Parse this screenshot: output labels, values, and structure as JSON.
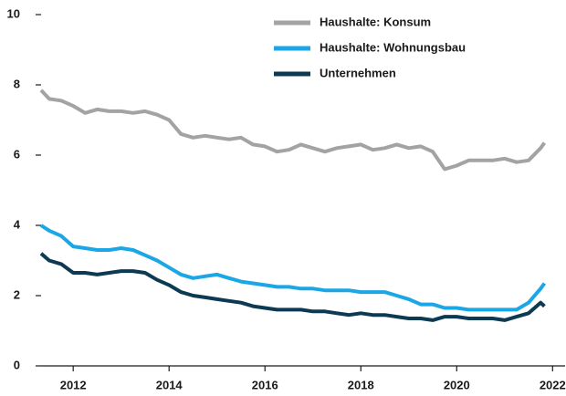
{
  "chart_data": {
    "type": "line",
    "x": [
      2011.33,
      2011.5,
      2011.75,
      2012,
      2012.25,
      2012.5,
      2012.75,
      2013,
      2013.25,
      2013.5,
      2013.75,
      2014,
      2014.25,
      2014.5,
      2014.75,
      2015,
      2015.25,
      2015.5,
      2015.75,
      2016,
      2016.25,
      2016.5,
      2016.75,
      2017,
      2017.25,
      2017.5,
      2017.75,
      2018,
      2018.25,
      2018.5,
      2018.75,
      2019,
      2019.25,
      2019.5,
      2019.75,
      2020,
      2020.25,
      2020.5,
      2020.75,
      2021,
      2021.25,
      2021.5,
      2021.75,
      2021.83
    ],
    "series": [
      {
        "name": "Haushalte: Konsum",
        "color": "#a3a3a3",
        "values": [
          7.85,
          7.6,
          7.55,
          7.4,
          7.2,
          7.3,
          7.25,
          7.25,
          7.2,
          7.25,
          7.15,
          7.0,
          6.6,
          6.5,
          6.55,
          6.5,
          6.45,
          6.5,
          6.3,
          6.25,
          6.1,
          6.15,
          6.3,
          6.2,
          6.1,
          6.2,
          6.25,
          6.3,
          6.15,
          6.2,
          6.3,
          6.2,
          6.25,
          6.1,
          5.6,
          5.7,
          5.85,
          5.85,
          5.85,
          5.9,
          5.8,
          5.85,
          6.2,
          6.35
        ]
      },
      {
        "name": "Haushalte: Wohnungsbau",
        "color": "#1ba6e6",
        "values": [
          4.0,
          3.85,
          3.7,
          3.4,
          3.35,
          3.3,
          3.3,
          3.35,
          3.3,
          3.15,
          3.0,
          2.8,
          2.6,
          2.5,
          2.55,
          2.6,
          2.5,
          2.4,
          2.35,
          2.3,
          2.25,
          2.25,
          2.2,
          2.2,
          2.15,
          2.15,
          2.15,
          2.1,
          2.1,
          2.1,
          2.0,
          1.9,
          1.75,
          1.75,
          1.65,
          1.65,
          1.6,
          1.6,
          1.6,
          1.6,
          1.6,
          1.8,
          2.2,
          2.35
        ]
      },
      {
        "name": "Unternehmen",
        "color": "#0b3a52",
        "values": [
          3.2,
          3.0,
          2.9,
          2.65,
          2.65,
          2.6,
          2.65,
          2.7,
          2.7,
          2.65,
          2.45,
          2.3,
          2.1,
          2.0,
          1.95,
          1.9,
          1.85,
          1.8,
          1.7,
          1.65,
          1.6,
          1.6,
          1.6,
          1.55,
          1.55,
          1.5,
          1.45,
          1.5,
          1.45,
          1.45,
          1.4,
          1.35,
          1.35,
          1.3,
          1.4,
          1.4,
          1.35,
          1.35,
          1.35,
          1.3,
          1.4,
          1.5,
          1.8,
          1.7
        ]
      }
    ],
    "xlim": [
      2011.33,
      2022.28
    ],
    "xticks": [
      2012,
      2014,
      2016,
      2018,
      2020,
      2022
    ],
    "ylim": [
      0,
      10
    ],
    "yticks": [
      0,
      2,
      4,
      6,
      8,
      10
    ],
    "grid": false
  }
}
